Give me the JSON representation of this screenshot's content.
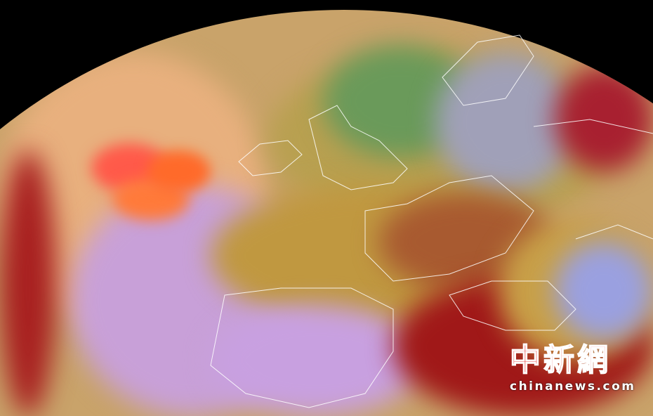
{
  "image": {
    "subject": "false-colour satellite view of Europe and the North Atlantic",
    "colors": {
      "background": "#000000",
      "dust_plume": "#ff6a3a",
      "cloud_red": "#a01818",
      "cloud_ochre": "#c9a040",
      "sea_lilac": "#a890d8",
      "coastline": "#ffffff"
    }
  },
  "watermark": {
    "logo_chinese": "中新網",
    "logo_domain": "chinanews.com",
    "color": "#e01010"
  }
}
